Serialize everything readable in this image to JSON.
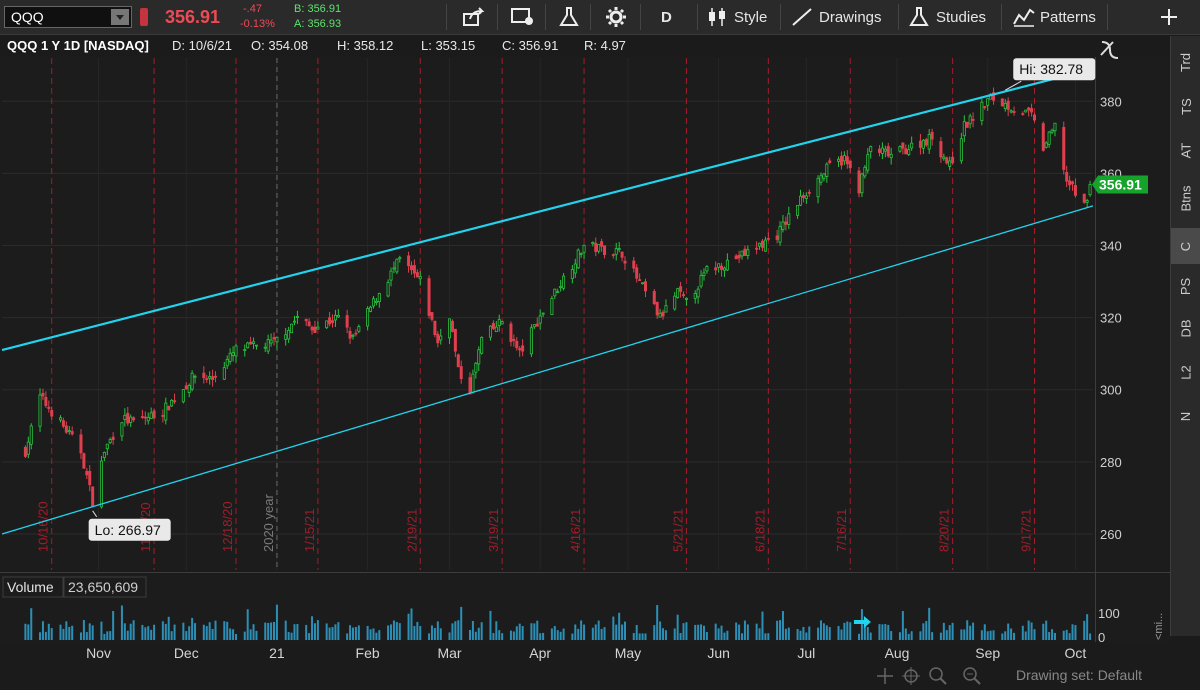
{
  "toolbar": {
    "symbol": "QQQ",
    "last": "356.91",
    "change": "-.47",
    "change_pct": "-0.13%",
    "bid": "B: 356.91",
    "ask": "A: 356.93",
    "aggregation": "D",
    "style_label": "Style",
    "drawings_label": "Drawings",
    "studies_label": "Studies",
    "patterns_label": "Patterns"
  },
  "infobar": {
    "title": "QQQ 1 Y 1D [NASDAQ]",
    "date": "D: 10/6/21",
    "open": "O: 354.08",
    "high": "H: 358.12",
    "low": "L: 353.15",
    "close": "C: 356.91",
    "range": "R: 4.97"
  },
  "chart_data": {
    "type": "candlestick",
    "symbol": "QQQ",
    "y_ticks": [
      380,
      360,
      340,
      320,
      300,
      280,
      260
    ],
    "ylim": [
      250,
      392
    ],
    "x_axis_labels": [
      "Nov",
      "Dec",
      "21",
      "Feb",
      "Mar",
      "Apr",
      "May",
      "Jun",
      "Jul",
      "Aug",
      "Sep",
      "Oct"
    ],
    "expiration_markers": [
      "10/16/20",
      "11/20/20",
      "12/18/20",
      "1/15/21",
      "2/19/21",
      "3/19/21",
      "4/16/21",
      "5/21/21",
      "6/18/21",
      "7/16/21",
      "8/20/21",
      "9/17/21"
    ],
    "year_marker": "2020 year",
    "hi_label": "Hi: 382.78",
    "lo_label": "Lo: 266.97",
    "last_price_label": "356.91",
    "anchors": [
      {
        "date": "2020-10-07",
        "close": 283
      },
      {
        "date": "2020-10-12",
        "close": 298
      },
      {
        "date": "2020-10-19",
        "close": 291
      },
      {
        "date": "2020-10-26",
        "close": 283
      },
      {
        "date": "2020-10-30",
        "close": 269
      },
      {
        "date": "2020-11-03",
        "close": 283
      },
      {
        "date": "2020-11-09",
        "close": 292
      },
      {
        "date": "2020-11-13",
        "close": 291
      },
      {
        "date": "2020-11-23",
        "close": 294
      },
      {
        "date": "2020-12-04",
        "close": 304
      },
      {
        "date": "2020-12-10",
        "close": 303
      },
      {
        "date": "2020-12-18",
        "close": 311
      },
      {
        "date": "2020-12-31",
        "close": 313
      },
      {
        "date": "2021-01-08",
        "close": 320
      },
      {
        "date": "2021-01-13",
        "close": 317
      },
      {
        "date": "2021-01-22",
        "close": 320
      },
      {
        "date": "2021-01-27",
        "close": 314
      },
      {
        "date": "2021-02-05",
        "close": 327
      },
      {
        "date": "2021-02-12",
        "close": 336
      },
      {
        "date": "2021-02-19",
        "close": 330
      },
      {
        "date": "2021-02-25",
        "close": 313
      },
      {
        "date": "2021-03-01",
        "close": 321
      },
      {
        "date": "2021-03-04",
        "close": 305
      },
      {
        "date": "2021-03-08",
        "close": 300
      },
      {
        "date": "2021-03-12",
        "close": 314
      },
      {
        "date": "2021-03-19",
        "close": 319
      },
      {
        "date": "2021-03-25",
        "close": 310
      },
      {
        "date": "2021-03-31",
        "close": 319
      },
      {
        "date": "2021-04-06",
        "close": 327
      },
      {
        "date": "2021-04-16",
        "close": 340
      },
      {
        "date": "2021-04-29",
        "close": 338
      },
      {
        "date": "2021-05-04",
        "close": 331
      },
      {
        "date": "2021-05-12",
        "close": 320
      },
      {
        "date": "2021-05-18",
        "close": 327
      },
      {
        "date": "2021-05-21",
        "close": 324
      },
      {
        "date": "2021-05-28",
        "close": 333
      },
      {
        "date": "2021-06-11",
        "close": 338
      },
      {
        "date": "2021-06-21",
        "close": 343
      },
      {
        "date": "2021-06-30",
        "close": 354
      },
      {
        "date": "2021-07-09",
        "close": 362
      },
      {
        "date": "2021-07-14",
        "close": 364
      },
      {
        "date": "2021-07-19",
        "close": 356
      },
      {
        "date": "2021-07-23",
        "close": 367
      },
      {
        "date": "2021-07-30",
        "close": 365
      },
      {
        "date": "2021-08-13",
        "close": 370
      },
      {
        "date": "2021-08-19",
        "close": 362
      },
      {
        "date": "2021-08-24",
        "close": 373
      },
      {
        "date": "2021-09-02",
        "close": 381
      },
      {
        "date": "2021-09-10",
        "close": 378
      },
      {
        "date": "2021-09-16",
        "close": 376
      },
      {
        "date": "2021-09-20",
        "close": 367
      },
      {
        "date": "2021-09-24",
        "close": 373
      },
      {
        "date": "2021-09-28",
        "close": 358
      },
      {
        "date": "2021-10-04",
        "close": 351
      },
      {
        "date": "2021-10-06",
        "close": 356.91
      }
    ],
    "channel_upper": {
      "from": {
        "date": "2020-09-29",
        "value": 311
      },
      "to": {
        "date": "2021-10-07",
        "value": 389
      }
    },
    "channel_lower": {
      "from": {
        "date": "2020-09-29",
        "value": 260
      },
      "to": {
        "date": "2021-10-07",
        "value": 351
      }
    },
    "volume_label": "Volume",
    "volume_value": "23,650,609",
    "volume_y_tick": "100",
    "volume_y_tick2": "0",
    "volume_side_label": "<mi..."
  },
  "rightpanel": {
    "tabs": [
      "Trd",
      "TS",
      "AT",
      "Btns",
      "C",
      "PS",
      "DB",
      "L2",
      "N"
    ]
  },
  "bottom": {
    "drawing_set": "Drawing set: Default"
  },
  "colors": {
    "up": "#27c43d",
    "down": "#e0404e",
    "channel": "#22d3ee",
    "expiration": "#a21d2a"
  }
}
